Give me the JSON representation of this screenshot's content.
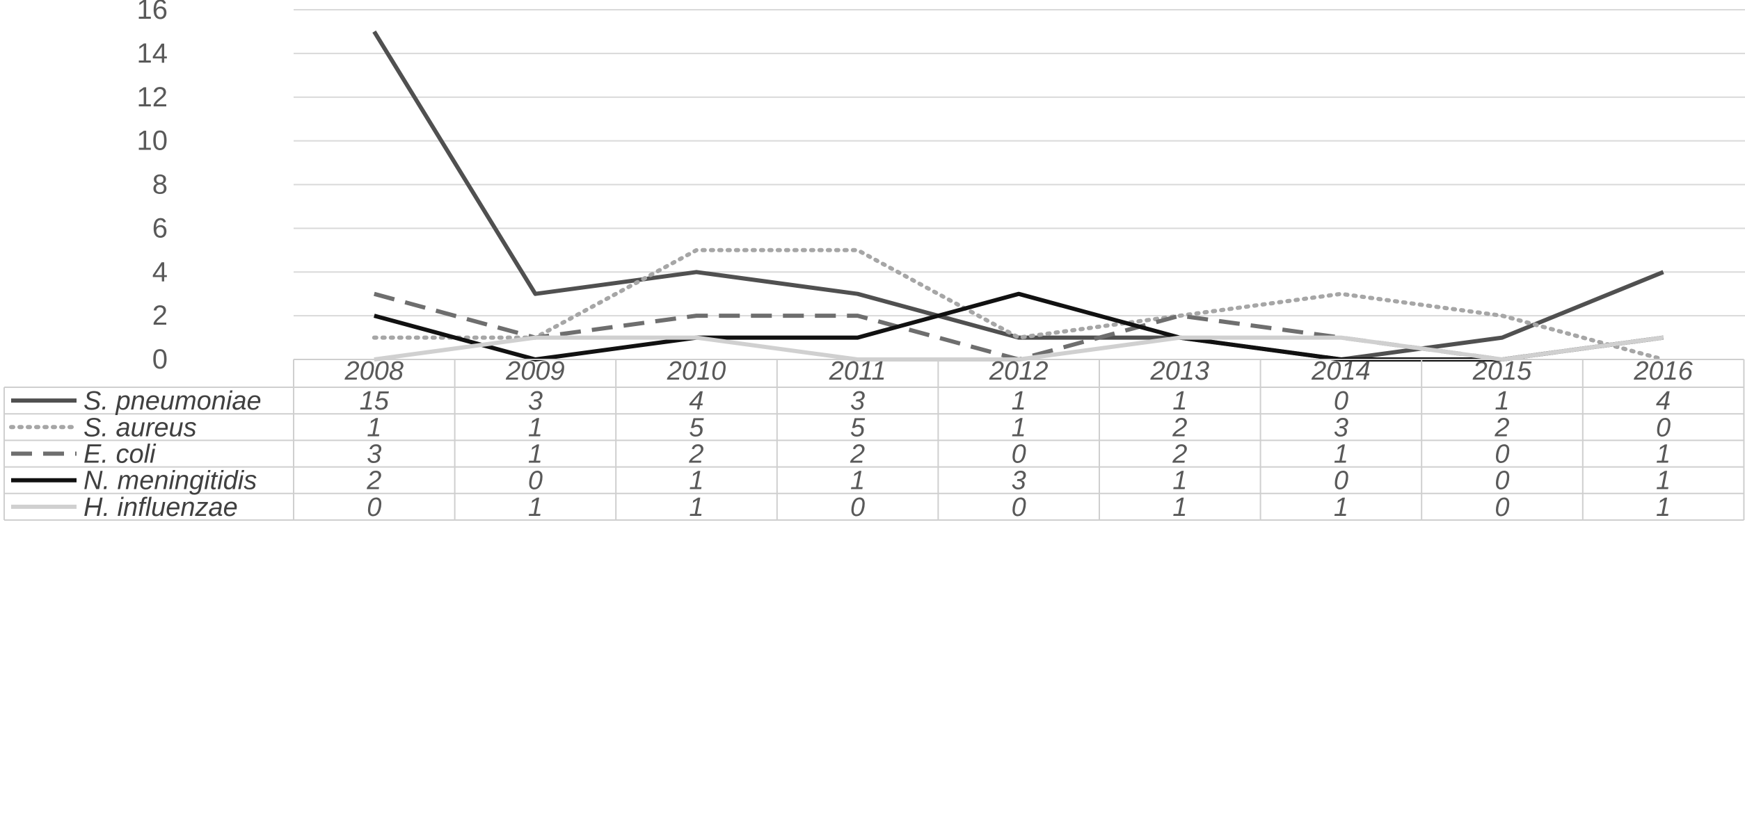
{
  "chart_data": {
    "type": "line",
    "categories": [
      "2008",
      "2009",
      "2010",
      "2011",
      "2012",
      "2013",
      "2014",
      "2015",
      "2016"
    ],
    "ylim": [
      0,
      16
    ],
    "yticks": [
      "0",
      "2",
      "4",
      "6",
      "8",
      "10",
      "12",
      "14",
      "16"
    ],
    "grid": true,
    "legend": "data-table-below",
    "series": [
      {
        "name": "S. pneumoniae",
        "values": [
          15,
          3,
          4,
          3,
          1,
          1,
          0,
          1,
          4
        ],
        "color": "#505050",
        "dash": "solid"
      },
      {
        "name": "S. aureus",
        "values": [
          1,
          1,
          5,
          5,
          1,
          2,
          3,
          2,
          0
        ],
        "color": "#a6a6a6",
        "dash": "dotted"
      },
      {
        "name": "E. coli",
        "values": [
          3,
          1,
          2,
          2,
          0,
          2,
          1,
          0,
          1
        ],
        "color": "#6e6e6e",
        "dash": "dashed"
      },
      {
        "name": "N. meningitidis",
        "values": [
          2,
          0,
          1,
          1,
          3,
          1,
          0,
          0,
          1
        ],
        "color": "#111111",
        "dash": "solid"
      },
      {
        "name": "H. influenzae",
        "values": [
          0,
          1,
          1,
          0,
          0,
          1,
          1,
          0,
          1
        ],
        "color": "#d0d0d0",
        "dash": "solid"
      }
    ]
  }
}
